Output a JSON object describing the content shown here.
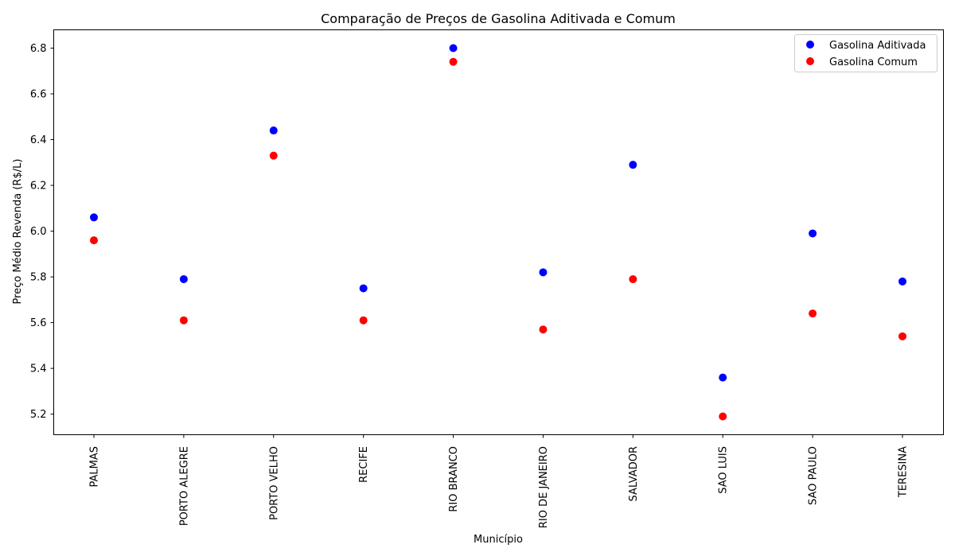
{
  "chart_data": {
    "type": "scatter",
    "title": "Comparação de Preços de Gasolina Aditivada e Comum",
    "xlabel": "Município",
    "ylabel": "Preço Médio Revenda (R$/L)",
    "categories": [
      "PALMAS",
      "PORTO ALEGRE",
      "PORTO VELHO",
      "RECIFE",
      "RIO BRANCO",
      "RIO DE JANEIRO",
      "SALVADOR",
      "SAO LUIS",
      "SAO PAULO",
      "TERESINA"
    ],
    "ylim": [
      5.11,
      6.88
    ],
    "yticks": [
      "5.2",
      "5.4",
      "5.6",
      "5.8",
      "6.0",
      "6.2",
      "6.4",
      "6.6",
      "6.8"
    ],
    "grid": false,
    "legend_position": "top-right",
    "series": [
      {
        "name": "Gasolina Aditivada",
        "color": "#0000ff",
        "values": [
          6.06,
          5.79,
          6.44,
          5.75,
          6.8,
          5.82,
          6.29,
          5.36,
          5.99,
          5.78
        ]
      },
      {
        "name": "Gasolina Comum",
        "color": "#ff0000",
        "values": [
          5.96,
          5.61,
          6.33,
          5.61,
          6.74,
          5.57,
          5.79,
          5.19,
          5.64,
          5.54
        ]
      }
    ]
  }
}
